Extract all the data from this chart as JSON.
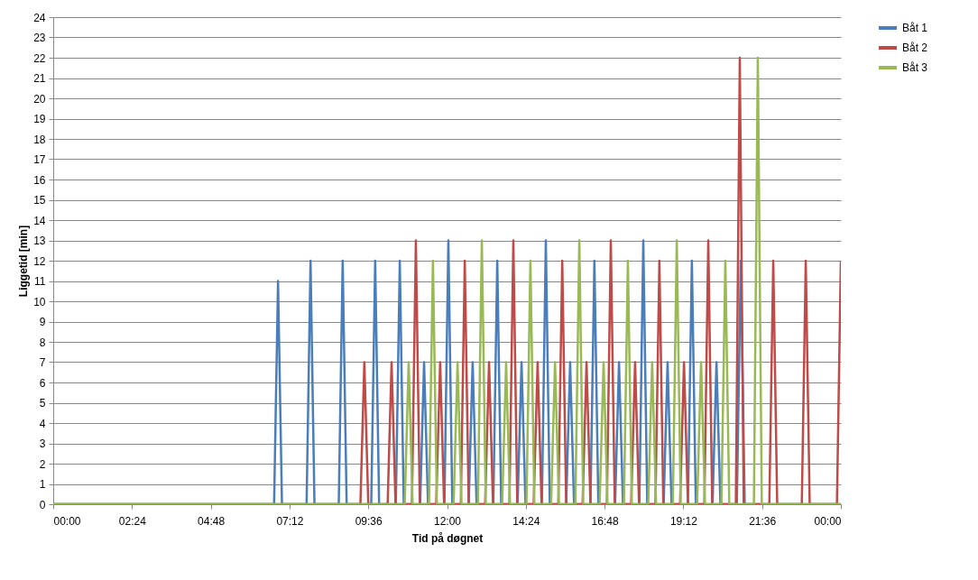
{
  "chart_data": {
    "type": "line",
    "xlabel": "Tid på døgnet",
    "ylabel": "Liggetid [min]",
    "xlim": [
      0,
      24
    ],
    "ylim": [
      0,
      24
    ],
    "xticks": [
      {
        "value": 0,
        "label": "00:00"
      },
      {
        "value": 2.4,
        "label": "02:24"
      },
      {
        "value": 4.8,
        "label": "04:48"
      },
      {
        "value": 7.2,
        "label": "07:12"
      },
      {
        "value": 9.6,
        "label": "09:36"
      },
      {
        "value": 12,
        "label": "12:00"
      },
      {
        "value": 14.4,
        "label": "14:24"
      },
      {
        "value": 16.8,
        "label": "16:48"
      },
      {
        "value": 19.2,
        "label": "19:12"
      },
      {
        "value": 21.6,
        "label": "21:36"
      },
      {
        "value": 24,
        "label": "00:00"
      }
    ],
    "yticks": [
      0,
      1,
      2,
      3,
      4,
      5,
      6,
      7,
      8,
      9,
      10,
      11,
      12,
      13,
      14,
      15,
      16,
      17,
      18,
      19,
      20,
      21,
      22,
      23,
      24
    ],
    "grid": "y",
    "legend": "right",
    "marker": "none",
    "line_style": "solid",
    "series": [
      {
        "name": "Båt 1",
        "color": "#4a7ebb",
        "x": [
          0,
          6.73,
          6.85,
          6.97,
          7.72,
          7.84,
          7.96,
          8.7,
          8.82,
          8.94,
          9.69,
          9.81,
          9.93,
          10.44,
          10.56,
          10.68,
          11.18,
          11.3,
          11.42,
          11.92,
          12.04,
          12.16,
          12.66,
          12.78,
          12.9,
          13.41,
          13.53,
          13.65,
          14.15,
          14.27,
          14.39,
          14.89,
          15.01,
          15.13,
          15.63,
          15.75,
          15.87,
          16.37,
          16.49,
          16.61,
          17.12,
          17.24,
          17.36,
          17.86,
          17.98,
          18.1,
          18.6,
          18.72,
          18.84,
          19.34,
          19.46,
          19.58,
          20.09,
          20.21,
          20.33,
          20.83,
          20.95,
          21.07,
          24
        ],
        "values": [
          0,
          0,
          11,
          0,
          0,
          12,
          0,
          0,
          12,
          0,
          0,
          12,
          0,
          0,
          12,
          0,
          0,
          7,
          0,
          0,
          13,
          0,
          0,
          7,
          0,
          0,
          12,
          0,
          0,
          7,
          0,
          0,
          13,
          0,
          0,
          7,
          0,
          0,
          12,
          0,
          0,
          7,
          0,
          0,
          13,
          0,
          0,
          7,
          0,
          0,
          12,
          0,
          0,
          7,
          0,
          0,
          12,
          0,
          0
        ]
      },
      {
        "name": "Båt 2",
        "color": "#be4b48",
        "x": [
          0,
          9.36,
          9.48,
          9.6,
          10.19,
          10.31,
          10.43,
          10.93,
          11.05,
          11.17,
          11.67,
          11.79,
          11.91,
          12.42,
          12.54,
          12.66,
          13.16,
          13.28,
          13.4,
          13.9,
          14.02,
          14.14,
          14.64,
          14.76,
          14.88,
          15.39,
          15.51,
          15.63,
          16.13,
          16.25,
          16.37,
          16.87,
          16.99,
          17.11,
          17.61,
          17.73,
          17.85,
          18.35,
          18.47,
          18.59,
          19.1,
          19.22,
          19.34,
          19.84,
          19.96,
          20.08,
          20.8,
          20.92,
          21.04,
          21.82,
          21.94,
          22.06,
          22.81,
          22.93,
          23.05,
          23.88,
          24
        ],
        "values": [
          0,
          0,
          7,
          0,
          0,
          7,
          0,
          0,
          13,
          0,
          0,
          7,
          0,
          0,
          12,
          0,
          0,
          7,
          0,
          0,
          13,
          0,
          0,
          7,
          0,
          0,
          12,
          0,
          0,
          7,
          0,
          0,
          13,
          0,
          0,
          7,
          0,
          0,
          12,
          0,
          0,
          7,
          0,
          0,
          13,
          0,
          0,
          22,
          0,
          0,
          12,
          0,
          0,
          12,
          0,
          0,
          12
        ]
      },
      {
        "name": "Båt 3",
        "color": "#98b954",
        "x": [
          0,
          10.71,
          10.83,
          10.95,
          11.45,
          11.57,
          11.69,
          12.2,
          12.32,
          12.44,
          12.94,
          13.06,
          13.18,
          13.68,
          13.8,
          13.92,
          14.42,
          14.54,
          14.66,
          15.17,
          15.29,
          15.41,
          15.91,
          16.03,
          16.15,
          16.65,
          16.77,
          16.89,
          17.39,
          17.51,
          17.63,
          18.13,
          18.25,
          18.37,
          18.88,
          19.0,
          19.12,
          19.62,
          19.74,
          19.86,
          20.36,
          20.48,
          20.6,
          21.35,
          21.47,
          21.59,
          24
        ],
        "values": [
          0,
          0,
          7,
          0,
          0,
          12,
          0,
          0,
          7,
          0,
          0,
          13,
          0,
          0,
          7,
          0,
          0,
          12,
          0,
          0,
          7,
          0,
          0,
          13,
          0,
          0,
          7,
          0,
          0,
          12,
          0,
          0,
          7,
          0,
          0,
          13,
          0,
          0,
          7,
          0,
          0,
          12,
          0,
          0,
          22,
          0,
          0
        ]
      }
    ]
  }
}
